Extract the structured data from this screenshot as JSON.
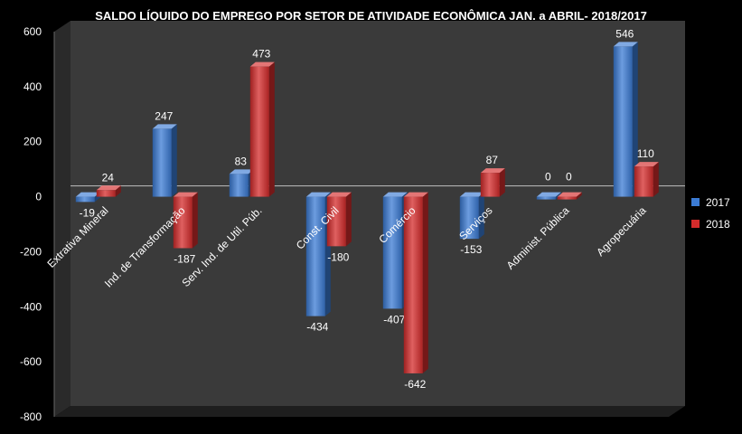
{
  "chart_data": {
    "type": "bar",
    "title": "SALDO LÍQUIDO DO EMPREGO POR SETOR DE ATIVIDADE ECONÔMICA JAN. a ABRIL- 2018/2017",
    "xlabel": "",
    "ylabel": "",
    "ylim": [
      -800,
      600
    ],
    "yticks": [
      "600",
      "400",
      "200",
      "0",
      "-200",
      "-400",
      "-600",
      "-800"
    ],
    "yticks_values": [
      600,
      400,
      200,
      0,
      -200,
      -400,
      -600,
      -800
    ],
    "categories": [
      "Extrativa Mineral",
      "Ind. de Transformação",
      "Serv. Ind. de Util. Púb.",
      "Const. Civil",
      "Comércio",
      "Serviços",
      "Administ. Pública",
      "Agropecuária"
    ],
    "series": [
      {
        "name": "2017",
        "values": [
          -19,
          247,
          83,
          -434,
          -407,
          -153,
          0,
          546
        ],
        "labels": [
          "-19",
          "247",
          "83",
          "-434",
          "-407",
          "-153",
          "0",
          "546"
        ],
        "color": "#3b7bd4"
      },
      {
        "name": "2018",
        "values": [
          24,
          -187,
          473,
          -180,
          -642,
          87,
          0,
          110
        ],
        "labels": [
          "24",
          "-187",
          "473",
          "-180",
          "-642",
          "87",
          "0",
          "110"
        ],
        "color": "#d42b2b"
      }
    ],
    "legend_position": "right",
    "grid": false,
    "colors": {
      "background": "#000000",
      "plot_wall": "#3a3a3a",
      "floor": "#1e1e1e",
      "text": "#ffffff",
      "zero_line": "#b0b0b0"
    }
  }
}
